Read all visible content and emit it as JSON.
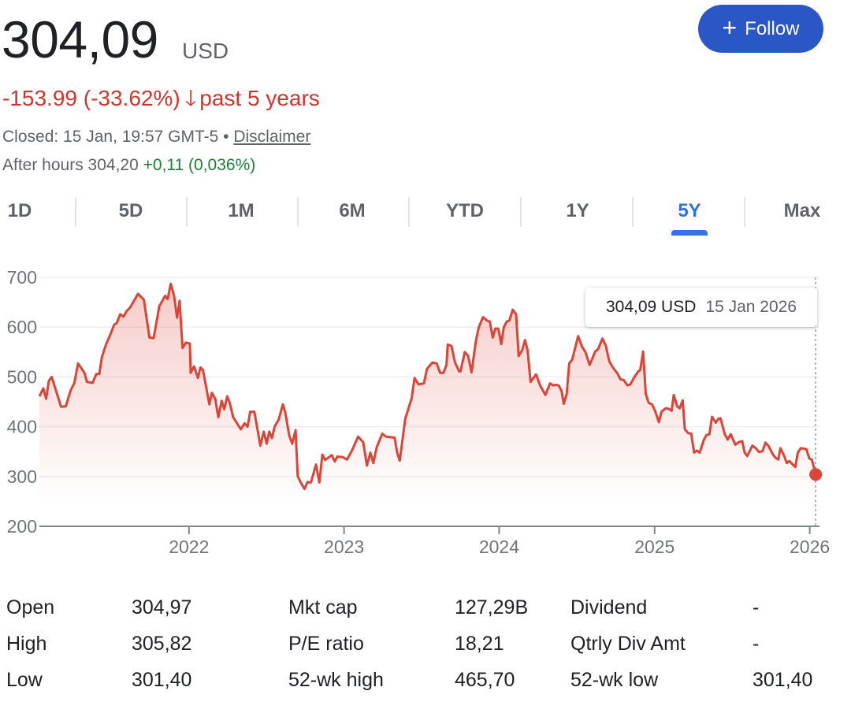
{
  "quote": {
    "price": "304,09",
    "currency": "USD",
    "change": "-153.99 (-33.62%)",
    "change_direction_icon": "arrow-down-icon",
    "change_arrow": "🡓",
    "change_period": "past 5 years",
    "closed_text": "Closed: 15 Jan, 19:57 GMT-5 •",
    "disclaimer_link": "Disclaimer",
    "after_hours_label": "After hours 304,20",
    "after_hours_change": "+0,11 (0,036%)"
  },
  "follow_button": {
    "icon": "plus-icon",
    "plus": "+",
    "label": "Follow"
  },
  "range_tabs": [
    {
      "label": "1D",
      "active": false
    },
    {
      "label": "5D",
      "active": false
    },
    {
      "label": "1M",
      "active": false
    },
    {
      "label": "6M",
      "active": false
    },
    {
      "label": "YTD",
      "active": false
    },
    {
      "label": "1Y",
      "active": false
    },
    {
      "label": "5Y",
      "active": true
    },
    {
      "label": "Max",
      "active": false
    }
  ],
  "tooltip": {
    "value": "304,09 USD",
    "date": "15 Jan 2026"
  },
  "colors": {
    "down": "#d0342c",
    "up": "#188038",
    "accent": "#2a56c6",
    "active_tab": "#2f6fde",
    "line": "#db4437"
  },
  "chart_data": {
    "type": "area",
    "xlim": [
      "2021-01-14",
      "2026-01-24"
    ],
    "ylim": [
      200,
      700
    ],
    "yticks": [
      "200",
      "300",
      "400",
      "500",
      "600",
      "700"
    ],
    "xticks": [
      {
        "date": "2022-01-01",
        "label": "2022"
      },
      {
        "date": "2023-01-01",
        "label": "2023"
      },
      {
        "date": "2024-01-01",
        "label": "2024"
      },
      {
        "date": "2025-01-01",
        "label": "2025"
      },
      {
        "date": "2026-01-01",
        "label": "2026"
      }
    ],
    "grid": true,
    "highlight": {
      "date": "2026-01-15",
      "value": 304.09
    },
    "series": [
      {
        "points": [
          [
            "2021-01-14",
            461
          ],
          [
            "2021-01-23",
            477
          ],
          [
            "2021-01-30",
            456
          ],
          [
            "2021-02-05",
            492
          ],
          [
            "2021-02-12",
            500
          ],
          [
            "2021-03-06",
            440
          ],
          [
            "2021-03-17",
            441
          ],
          [
            "2021-03-29",
            474
          ],
          [
            "2021-04-06",
            487
          ],
          [
            "2021-04-15",
            527
          ],
          [
            "2021-04-30",
            508
          ],
          [
            "2021-05-06",
            490
          ],
          [
            "2021-05-19",
            488
          ],
          [
            "2021-05-28",
            506
          ],
          [
            "2021-06-04",
            506
          ],
          [
            "2021-06-10",
            540
          ],
          [
            "2021-06-20",
            566
          ],
          [
            "2021-06-29",
            583
          ],
          [
            "2021-07-09",
            605
          ],
          [
            "2021-07-15",
            608
          ],
          [
            "2021-07-23",
            626
          ],
          [
            "2021-07-31",
            621
          ],
          [
            "2021-08-07",
            632
          ],
          [
            "2021-08-16",
            640
          ],
          [
            "2021-09-03",
            667
          ],
          [
            "2021-09-17",
            655
          ],
          [
            "2021-09-30",
            579
          ],
          [
            "2021-10-10",
            578
          ],
          [
            "2021-10-23",
            642
          ],
          [
            "2021-11-06",
            663
          ],
          [
            "2021-11-12",
            656
          ],
          [
            "2021-11-19",
            687
          ],
          [
            "2021-11-27",
            663
          ],
          [
            "2021-12-04",
            619
          ],
          [
            "2021-12-10",
            653
          ],
          [
            "2021-12-17",
            558
          ],
          [
            "2021-12-25",
            569
          ],
          [
            "2022-01-03",
            567
          ],
          [
            "2022-01-05",
            508
          ],
          [
            "2022-01-13",
            521
          ],
          [
            "2022-01-22",
            498
          ],
          [
            "2022-01-28",
            519
          ],
          [
            "2022-02-03",
            514
          ],
          [
            "2022-02-18",
            445
          ],
          [
            "2022-02-24",
            468
          ],
          [
            "2022-03-04",
            456
          ],
          [
            "2022-03-11",
            419
          ],
          [
            "2022-03-19",
            452
          ],
          [
            "2022-03-25",
            435
          ],
          [
            "2022-04-01",
            461
          ],
          [
            "2022-04-07",
            448
          ],
          [
            "2022-04-15",
            419
          ],
          [
            "2022-05-03",
            395
          ],
          [
            "2022-05-12",
            407
          ],
          [
            "2022-05-19",
            400
          ],
          [
            "2022-05-25",
            430
          ],
          [
            "2022-06-04",
            430
          ],
          [
            "2022-06-18",
            362
          ],
          [
            "2022-06-26",
            390
          ],
          [
            "2022-07-03",
            366
          ],
          [
            "2022-07-09",
            390
          ],
          [
            "2022-07-15",
            377
          ],
          [
            "2022-07-22",
            401
          ],
          [
            "2022-07-31",
            414
          ],
          [
            "2022-08-10",
            445
          ],
          [
            "2022-08-16",
            427
          ],
          [
            "2022-08-25",
            382
          ],
          [
            "2022-09-01",
            366
          ],
          [
            "2022-09-09",
            393
          ],
          [
            "2022-09-14",
            301
          ],
          [
            "2022-09-21",
            288
          ],
          [
            "2022-09-30",
            275
          ],
          [
            "2022-10-07",
            289
          ],
          [
            "2022-10-15",
            288
          ],
          [
            "2022-10-27",
            324
          ],
          [
            "2022-11-04",
            288
          ],
          [
            "2022-11-11",
            344
          ],
          [
            "2022-11-17",
            333
          ],
          [
            "2022-12-03",
            343
          ],
          [
            "2022-12-10",
            330
          ],
          [
            "2022-12-16",
            340
          ],
          [
            "2022-12-29",
            339
          ],
          [
            "2023-01-08",
            334
          ],
          [
            "2023-01-20",
            353
          ],
          [
            "2023-02-03",
            380
          ],
          [
            "2023-02-15",
            369
          ],
          [
            "2023-02-24",
            322
          ],
          [
            "2023-03-04",
            348
          ],
          [
            "2023-03-11",
            327
          ],
          [
            "2023-03-19",
            359
          ],
          [
            "2023-04-01",
            386
          ],
          [
            "2023-04-10",
            380
          ],
          [
            "2023-04-30",
            378
          ],
          [
            "2023-05-06",
            348
          ],
          [
            "2023-05-12",
            332
          ],
          [
            "2023-05-25",
            416
          ],
          [
            "2023-06-09",
            457
          ],
          [
            "2023-06-16",
            498
          ],
          [
            "2023-06-25",
            485
          ],
          [
            "2023-07-08",
            487
          ],
          [
            "2023-07-15",
            516
          ],
          [
            "2023-07-28",
            529
          ],
          [
            "2023-08-07",
            527
          ],
          [
            "2023-08-15",
            508
          ],
          [
            "2023-08-23",
            508
          ],
          [
            "2023-08-30",
            524
          ],
          [
            "2023-09-02",
            565
          ],
          [
            "2023-09-11",
            562
          ],
          [
            "2023-09-19",
            529
          ],
          [
            "2023-09-29",
            511
          ],
          [
            "2023-10-02",
            511
          ],
          [
            "2023-10-12",
            550
          ],
          [
            "2023-10-20",
            542
          ],
          [
            "2023-10-28",
            509
          ],
          [
            "2023-11-07",
            571
          ],
          [
            "2023-11-14",
            599
          ],
          [
            "2023-11-24",
            620
          ],
          [
            "2023-12-04",
            613
          ],
          [
            "2023-12-10",
            611
          ],
          [
            "2023-12-17",
            579
          ],
          [
            "2023-12-23",
            597
          ],
          [
            "2023-12-30",
            597
          ],
          [
            "2024-01-06",
            566
          ],
          [
            "2024-01-12",
            600
          ],
          [
            "2024-01-19",
            611
          ],
          [
            "2024-01-25",
            613
          ],
          [
            "2024-02-02",
            635
          ],
          [
            "2024-02-10",
            626
          ],
          [
            "2024-02-16",
            542
          ],
          [
            "2024-02-24",
            553
          ],
          [
            "2024-03-02",
            574
          ],
          [
            "2024-03-08",
            553
          ],
          [
            "2024-03-15",
            490
          ],
          [
            "2024-03-28",
            505
          ],
          [
            "2024-04-07",
            482
          ],
          [
            "2024-04-19",
            464
          ],
          [
            "2024-04-30",
            487
          ],
          [
            "2024-05-07",
            483
          ],
          [
            "2024-05-14",
            484
          ],
          [
            "2024-05-20",
            483
          ],
          [
            "2024-05-27",
            472
          ],
          [
            "2024-06-01",
            446
          ],
          [
            "2024-06-08",
            466
          ],
          [
            "2024-06-14",
            527
          ],
          [
            "2024-06-21",
            535
          ],
          [
            "2024-07-05",
            582
          ],
          [
            "2024-07-14",
            561
          ],
          [
            "2024-07-22",
            550
          ],
          [
            "2024-08-01",
            524
          ],
          [
            "2024-08-14",
            551
          ],
          [
            "2024-08-21",
            556
          ],
          [
            "2024-08-31",
            577
          ],
          [
            "2024-09-08",
            563
          ],
          [
            "2024-09-16",
            532
          ],
          [
            "2024-09-23",
            521
          ],
          [
            "2024-10-06",
            506
          ],
          [
            "2024-10-13",
            495
          ],
          [
            "2024-10-20",
            494
          ],
          [
            "2024-10-29",
            483
          ],
          [
            "2024-11-05",
            485
          ],
          [
            "2024-11-13",
            498
          ],
          [
            "2024-11-23",
            511
          ],
          [
            "2024-11-28",
            514
          ],
          [
            "2024-12-05",
            551
          ],
          [
            "2024-12-11",
            466
          ],
          [
            "2024-12-18",
            448
          ],
          [
            "2024-12-26",
            445
          ],
          [
            "2025-01-02",
            432
          ],
          [
            "2025-01-11",
            409
          ],
          [
            "2025-01-17",
            430
          ],
          [
            "2025-01-27",
            437
          ],
          [
            "2025-02-03",
            436
          ],
          [
            "2025-02-10",
            432
          ],
          [
            "2025-02-15",
            464
          ],
          [
            "2025-02-23",
            441
          ],
          [
            "2025-03-01",
            437
          ],
          [
            "2025-03-08",
            453
          ],
          [
            "2025-03-13",
            395
          ],
          [
            "2025-03-21",
            387
          ],
          [
            "2025-03-28",
            386
          ],
          [
            "2025-04-04",
            348
          ],
          [
            "2025-04-10",
            352
          ],
          [
            "2025-04-17",
            348
          ],
          [
            "2025-04-27",
            374
          ],
          [
            "2025-05-03",
            383
          ],
          [
            "2025-05-10",
            385
          ],
          [
            "2025-05-16",
            420
          ],
          [
            "2025-05-25",
            408
          ],
          [
            "2025-05-31",
            416
          ],
          [
            "2025-06-05",
            417
          ],
          [
            "2025-06-15",
            385
          ],
          [
            "2025-06-22",
            374
          ],
          [
            "2025-06-29",
            385
          ],
          [
            "2025-07-10",
            364
          ],
          [
            "2025-07-18",
            369
          ],
          [
            "2025-07-26",
            371
          ],
          [
            "2025-08-01",
            348
          ],
          [
            "2025-08-07",
            341
          ],
          [
            "2025-08-19",
            362
          ],
          [
            "2025-08-27",
            357
          ],
          [
            "2025-09-04",
            349
          ],
          [
            "2025-09-12",
            351
          ],
          [
            "2025-09-19",
            368
          ],
          [
            "2025-09-26",
            361
          ],
          [
            "2025-10-06",
            345
          ],
          [
            "2025-10-12",
            338
          ],
          [
            "2025-10-19",
            334
          ],
          [
            "2025-10-24",
            357
          ],
          [
            "2025-11-01",
            343
          ],
          [
            "2025-11-08",
            327
          ],
          [
            "2025-11-14",
            331
          ],
          [
            "2025-11-28",
            319
          ],
          [
            "2025-12-04",
            348
          ],
          [
            "2025-12-11",
            357
          ],
          [
            "2025-12-24",
            355
          ],
          [
            "2025-12-31",
            336
          ],
          [
            "2026-01-06",
            334
          ],
          [
            "2026-01-15",
            304.09
          ]
        ]
      }
    ]
  },
  "stats": [
    [
      {
        "label": "Open",
        "value": "304,97"
      },
      {
        "label": "Mkt cap",
        "value": "127,29B"
      },
      {
        "label": "Dividend",
        "value": "-"
      }
    ],
    [
      {
        "label": "High",
        "value": "305,82"
      },
      {
        "label": "P/E ratio",
        "value": "18,21"
      },
      {
        "label": "Qtrly Div Amt",
        "value": "-"
      }
    ],
    [
      {
        "label": "Low",
        "value": "301,40"
      },
      {
        "label": "52-wk high",
        "value": "465,70"
      },
      {
        "label": "52-wk low",
        "value": "301,40"
      }
    ]
  ]
}
